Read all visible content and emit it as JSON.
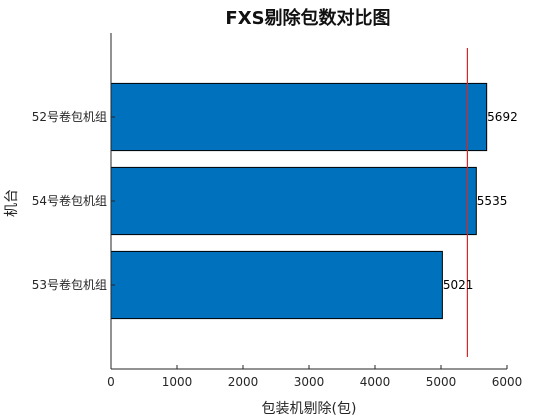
{
  "chart_data": {
    "type": "bar",
    "orientation": "horizontal",
    "title": "FXS剔除包数对比图",
    "xlabel": "包装机剔除(包)",
    "ylabel": "机台",
    "categories": [
      "53号卷包机组",
      "54号卷包机组",
      "52号卷包机组"
    ],
    "values": [
      5021,
      5535,
      5692
    ],
    "data_labels": [
      "5021",
      "5535",
      "5692"
    ],
    "xlim": [
      0,
      6000
    ],
    "xticks": [
      0,
      1000,
      2000,
      3000,
      4000,
      5000,
      6000
    ],
    "xtick_labels": [
      "0",
      "1000",
      "2000",
      "3000",
      "4000",
      "5000",
      "6000"
    ],
    "reference_line": {
      "value": 5400,
      "color": "#d62728"
    },
    "bar_color": "#0072bd",
    "grid": false
  }
}
